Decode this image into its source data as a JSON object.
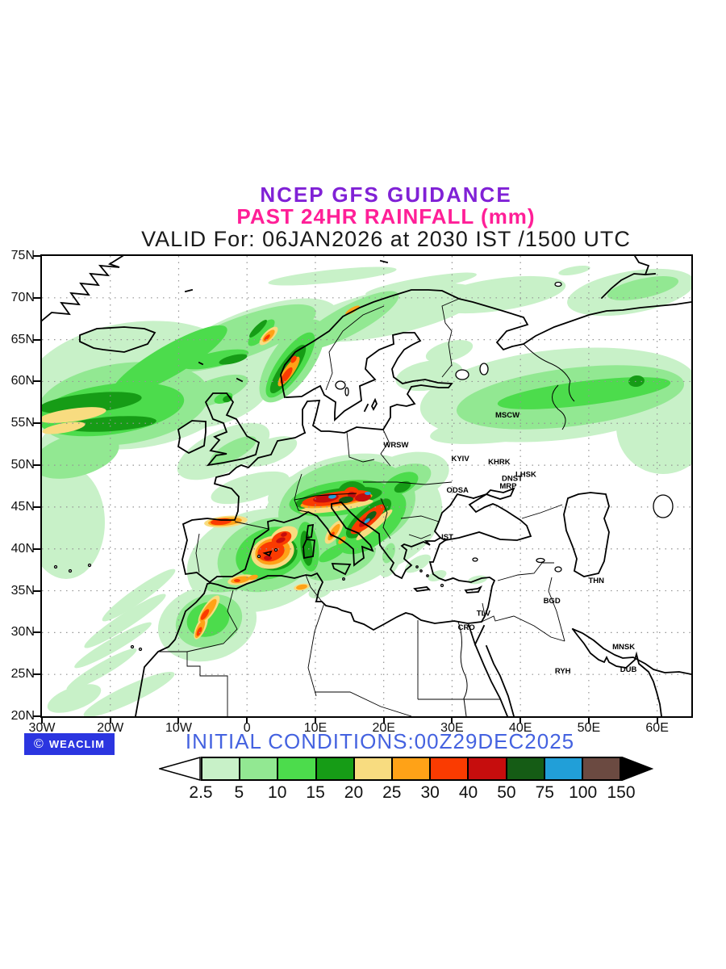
{
  "header": {
    "line1": "NCEP GFS GUIDANCE",
    "line2": "PAST 24HR RAINFALL (mm)",
    "line3": "VALID For: 06JAN2026 at 2030 IST /1500 UTC",
    "line1_color": "#8021d6",
    "line2_color": "#ff1f97",
    "line3_color": "#1a1a1a"
  },
  "footer": {
    "initial_conditions": "INITIAL CONDITIONS:00Z29DEC2025",
    "color": "#4462e0"
  },
  "branding": {
    "copyright": "©",
    "name": "WEACLIM",
    "bg": "#2b35e0",
    "fg": "#ffffff"
  },
  "map": {
    "lon_min": -30,
    "lon_max": 65,
    "lat_min": 20,
    "lat_max": 75,
    "lat_ticks": [
      {
        "label": "75N",
        "value": 75
      },
      {
        "label": "70N",
        "value": 70
      },
      {
        "label": "65N",
        "value": 65
      },
      {
        "label": "60N",
        "value": 60
      },
      {
        "label": "55N",
        "value": 55
      },
      {
        "label": "50N",
        "value": 50
      },
      {
        "label": "45N",
        "value": 45
      },
      {
        "label": "40N",
        "value": 40
      },
      {
        "label": "35N",
        "value": 35
      },
      {
        "label": "30N",
        "value": 30
      },
      {
        "label": "25N",
        "value": 25
      },
      {
        "label": "20N",
        "value": 20
      }
    ],
    "lon_ticks": [
      {
        "label": "30W",
        "value": -30
      },
      {
        "label": "20W",
        "value": -20
      },
      {
        "label": "10W",
        "value": -10
      },
      {
        "label": "0",
        "value": 0
      },
      {
        "label": "10E",
        "value": 10
      },
      {
        "label": "20E",
        "value": 20
      },
      {
        "label": "30E",
        "value": 30
      },
      {
        "label": "40E",
        "value": 40
      },
      {
        "label": "50E",
        "value": 50
      },
      {
        "label": "60E",
        "value": 60
      }
    ],
    "grid_lats": [
      70,
      65,
      60,
      55,
      50,
      45,
      40,
      35,
      30,
      25
    ],
    "grid_lons": [
      -20,
      -10,
      0,
      10,
      20,
      30,
      40,
      50,
      60
    ],
    "cities": [
      {
        "label": "MSCW",
        "lon": 38.1,
        "lat": 56.0
      },
      {
        "label": "WRSW",
        "lon": 21.8,
        "lat": 52.4
      },
      {
        "label": "KYIV",
        "lon": 31.2,
        "lat": 50.8
      },
      {
        "label": "KHRK",
        "lon": 36.9,
        "lat": 50.4
      },
      {
        "label": "LHSK",
        "lon": 40.8,
        "lat": 48.9
      },
      {
        "label": "DNST",
        "lon": 38.8,
        "lat": 48.4
      },
      {
        "label": "MRP",
        "lon": 38.2,
        "lat": 47.5
      },
      {
        "label": "ODSA",
        "lon": 30.8,
        "lat": 47.0
      },
      {
        "label": "IST",
        "lon": 29.3,
        "lat": 41.4
      },
      {
        "label": "THN",
        "lon": 51.1,
        "lat": 36.2
      },
      {
        "label": "BGD",
        "lon": 44.6,
        "lat": 33.8
      },
      {
        "label": "TLV",
        "lon": 34.6,
        "lat": 32.3
      },
      {
        "label": "CRO",
        "lon": 32.1,
        "lat": 30.6
      },
      {
        "label": "MNSK",
        "lon": 55.1,
        "lat": 28.3
      },
      {
        "label": "RYH",
        "lon": 46.2,
        "lat": 25.4
      },
      {
        "label": "DUB",
        "lon": 55.8,
        "lat": 25.6
      }
    ]
  },
  "colorbar": {
    "values": [
      "2.5",
      "5",
      "10",
      "15",
      "20",
      "25",
      "30",
      "40",
      "50",
      "75",
      "100",
      "150"
    ],
    "colors": [
      "#c8f1c8",
      "#92e892",
      "#4cdc4c",
      "#169c16",
      "#f8dc80",
      "#ffa217",
      "#fa3b01",
      "#c60d0d",
      "#155c15",
      "#219fd8",
      "#6b4a41"
    ],
    "under_color": "#ffffff",
    "over_color": "#000000"
  }
}
